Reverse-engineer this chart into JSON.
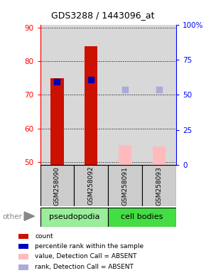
{
  "title": "GDS3288 / 1443096_at",
  "samples": [
    "GSM258090",
    "GSM258092",
    "GSM258091",
    "GSM258093"
  ],
  "group_colors": {
    "pseudopodia": "#99ee99",
    "cell bodies": "#44dd44"
  },
  "ylim_left": [
    49,
    91
  ],
  "ylim_right": [
    0,
    100
  ],
  "yticks_left": [
    50,
    60,
    70,
    80,
    90
  ],
  "yticks_right": [
    0,
    25,
    50,
    75,
    100
  ],
  "ytick_labels_right": [
    "0",
    "25",
    "50",
    "75",
    "100%"
  ],
  "bar_values": [
    75.0,
    84.5,
    null,
    null
  ],
  "bar_color": "#cc1100",
  "absent_bar_values": [
    null,
    null,
    55.0,
    54.5
  ],
  "absent_bar_color": "#ffbbbb",
  "rank_values": [
    74.0,
    74.5,
    null,
    null
  ],
  "rank_color": "#0000bb",
  "absent_rank_values": [
    null,
    null,
    71.5,
    71.5
  ],
  "absent_rank_color": "#aaaadd",
  "bar_width": 0.38,
  "rank_marker_size": 30,
  "legend_items": [
    {
      "color": "#cc1100",
      "label": "count"
    },
    {
      "color": "#0000bb",
      "label": "percentile rank within the sample"
    },
    {
      "color": "#ffbbbb",
      "label": "value, Detection Call = ABSENT"
    },
    {
      "color": "#aaaadd",
      "label": "rank, Detection Call = ABSENT"
    }
  ],
  "other_label": "other"
}
